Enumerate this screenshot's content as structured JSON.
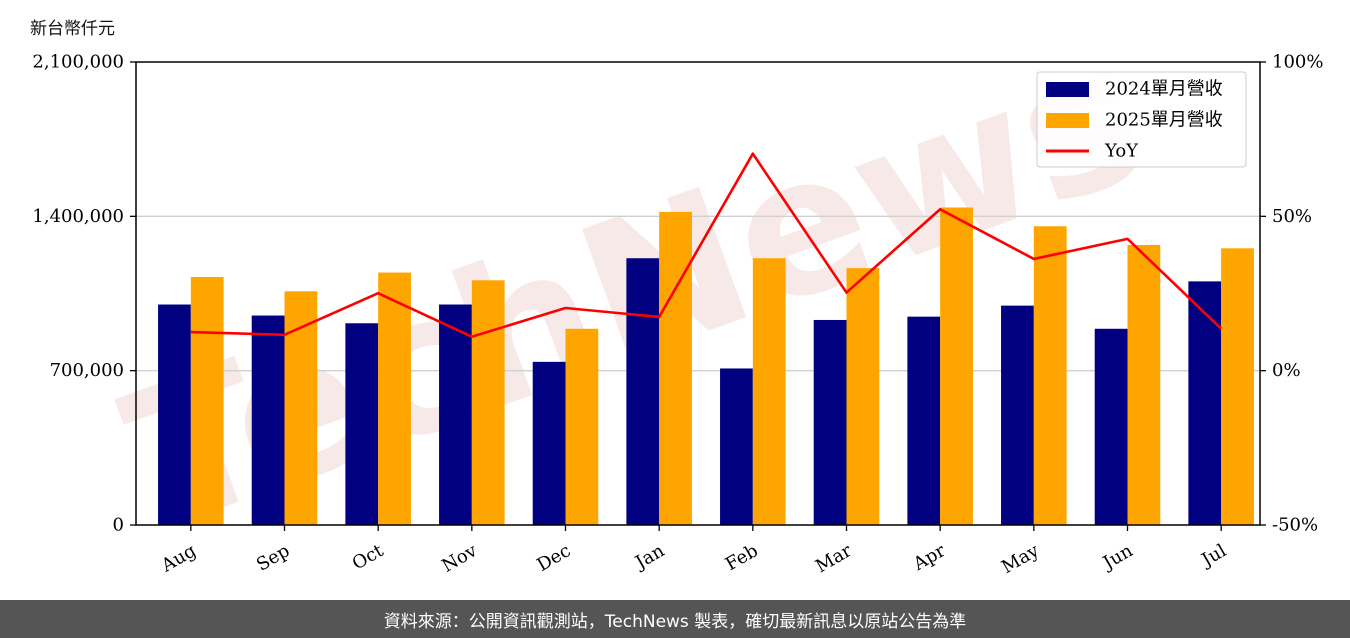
{
  "unit_label": "新台幣仟元",
  "footer_text": "資料來源：公開資訊觀測站，TechNews 製表，確切最新訊息以原站公告為準",
  "watermark_text": "TechNews",
  "colors": {
    "bar_2024": "#000080",
    "bar_2025": "#ffa500",
    "yoy_line": "#ff0000",
    "grid": "#d0d0d0",
    "footer_bg": "#555555"
  },
  "chart_data": {
    "type": "bar",
    "categories": [
      "Aug",
      "Sep",
      "Oct",
      "Nov",
      "Dec",
      "Jan",
      "Feb",
      "Mar",
      "Apr",
      "May",
      "Jun",
      "Jul"
    ],
    "series": [
      {
        "name": "2024單月營收",
        "axis": "left",
        "type": "bar",
        "values": [
          1000000,
          950000,
          915000,
          1000000,
          740000,
          1210000,
          710000,
          930000,
          945000,
          995000,
          890000,
          1105000
        ]
      },
      {
        "name": "2025單月營收",
        "axis": "left",
        "type": "bar",
        "values": [
          1125000,
          1060000,
          1145000,
          1110000,
          890000,
          1420000,
          1210000,
          1165000,
          1440000,
          1355000,
          1270000,
          1255000
        ]
      },
      {
        "name": "YoY",
        "axis": "right",
        "type": "line",
        "values": [
          12.5,
          11.6,
          25.1,
          11.0,
          20.3,
          17.4,
          70.3,
          25.3,
          52.3,
          36.2,
          42.7,
          13.6
        ]
      }
    ],
    "y_left": {
      "range": [
        0,
        2100000
      ],
      "ticks": [
        "0",
        "700,000",
        "1,400,000",
        "2,100,000"
      ],
      "tick_values": [
        0,
        700000,
        1400000,
        2100000
      ]
    },
    "y_right": {
      "range": [
        -50,
        100
      ],
      "ticks": [
        "-50%",
        "0%",
        "50%",
        "100%"
      ],
      "tick_values": [
        -50,
        0,
        50,
        100
      ]
    },
    "grid": "horizontal",
    "legend": "top-right"
  }
}
